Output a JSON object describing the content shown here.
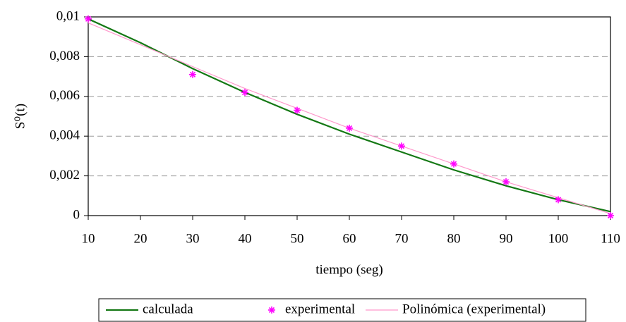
{
  "chart_data": {
    "type": "line",
    "ylabel": "S⁰(t)",
    "xlabel": "tiempo (seg)",
    "x": [
      10,
      20,
      30,
      40,
      50,
      60,
      70,
      80,
      90,
      100,
      110
    ],
    "series": [
      {
        "name": "calculada",
        "color": "#147814",
        "style": "line",
        "values": [
          0.0099,
          0.0087,
          0.0074,
          0.0062,
          0.0051,
          0.0041,
          0.0032,
          0.0023,
          0.0015,
          0.0008,
          0.0002
        ]
      },
      {
        "name": "experimental",
        "color": "#ff00ff",
        "style": "marker",
        "values": [
          0.0099,
          null,
          0.0071,
          0.0062,
          0.0053,
          0.0044,
          0.0035,
          0.0026,
          0.0017,
          0.0008,
          0.0
        ]
      },
      {
        "name": "Polinómica (experimental)",
        "color": "#ff99cc",
        "style": "line",
        "values": [
          0.0097,
          0.0086,
          0.0075,
          0.0064,
          0.0054,
          0.0044,
          0.0035,
          0.0026,
          0.0017,
          0.0009,
          0.0001
        ]
      }
    ],
    "xlim": [
      10,
      110
    ],
    "xticks": [
      10,
      20,
      30,
      40,
      50,
      60,
      70,
      80,
      90,
      100,
      110
    ],
    "ylim": [
      0,
      0.01
    ],
    "yticks": [
      0,
      {
        "value": 0.002,
        "label": "0,002"
      },
      {
        "value": 0.004,
        "label": "0,004"
      },
      {
        "value": 0.006,
        "label": "0,006"
      },
      {
        "value": 0.008,
        "label": "0,008"
      },
      {
        "value": 0.01,
        "label": "0,01"
      }
    ],
    "grid": true,
    "legend": "bottom"
  }
}
